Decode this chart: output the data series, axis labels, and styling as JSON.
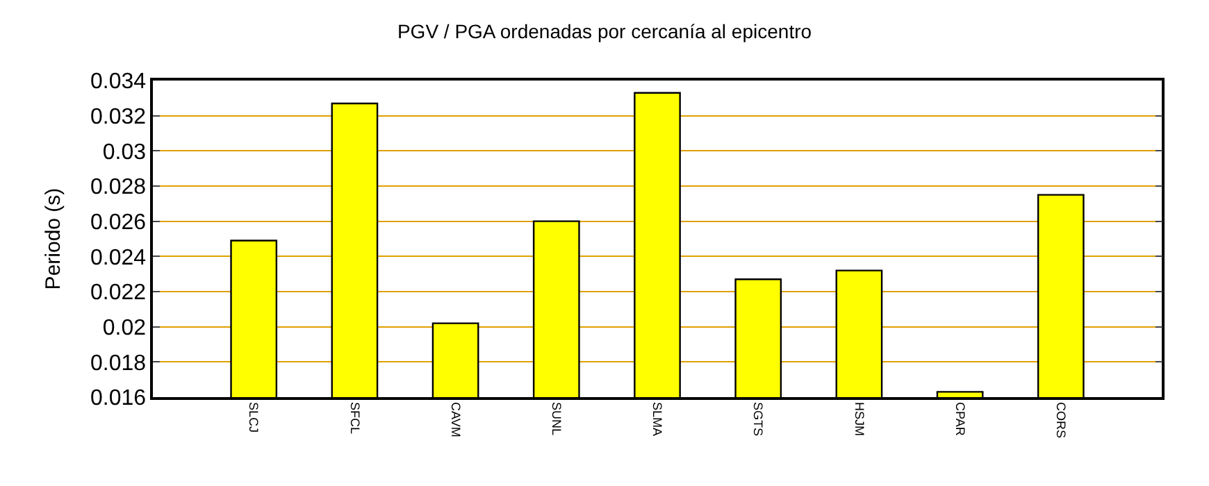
{
  "chart_data": {
    "type": "bar",
    "title": "PGV / PGA ordenadas por cercanía al epicentro",
    "ylabel": "Periodo (s)",
    "categories": [
      "SLCJ",
      "SFCL",
      "CAVM",
      "SUNL",
      "SLMA",
      "SGTS",
      "HSJM",
      "CPAR",
      "CORS"
    ],
    "values": [
      0.0249,
      0.0327,
      0.0202,
      0.026,
      0.0333,
      0.0227,
      0.0232,
      0.0163,
      0.0275
    ],
    "color": "#ffff00",
    "ylim": [
      0.016,
      0.034
    ],
    "yticks": [
      0.016,
      0.018,
      0.02,
      0.022,
      0.024,
      0.026,
      0.028,
      0.03,
      0.032,
      0.034
    ],
    "grid": "y",
    "legend": false
  }
}
